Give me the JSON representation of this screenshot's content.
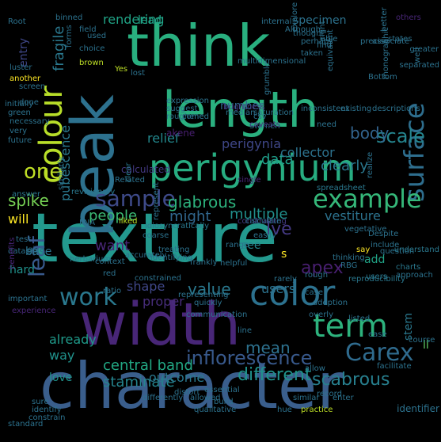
{
  "background": "#000000",
  "words": [
    {
      "text": "texture",
      "color": "#23998e"
    },
    {
      "text": "character",
      "color": "#3a5e8c"
    },
    {
      "text": "width",
      "color": "#482677"
    },
    {
      "text": "beak",
      "color": "#2d718e"
    },
    {
      "text": "think",
      "color": "#29af7f"
    },
    {
      "text": "length",
      "color": "#2ab07f"
    },
    {
      "text": "perigynium",
      "color": "#27ad81"
    },
    {
      "text": "colour",
      "color": "#b8de29"
    },
    {
      "text": "color",
      "color": "#2c718e"
    },
    {
      "text": "surface",
      "color": "#2e6e8e"
    },
    {
      "text": "term",
      "color": "#2db27d"
    },
    {
      "text": "sample",
      "color": "#3e4a89"
    },
    {
      "text": "example",
      "color": "#35b779"
    },
    {
      "text": "Carex",
      "color": "#2f6b8e"
    },
    {
      "text": "one",
      "color": "#c0df25"
    },
    {
      "text": "inflorescence",
      "color": "#38598c"
    },
    {
      "text": "leaf",
      "color": "#38598c"
    },
    {
      "text": "work",
      "color": "#2a788e"
    },
    {
      "text": "scale",
      "color": "#25858e"
    },
    {
      "text": "spike",
      "color": "#75d054"
    },
    {
      "text": "glabrous",
      "color": "#2db27d"
    },
    {
      "text": "people",
      "color": "#3bbb75"
    },
    {
      "text": "might",
      "color": "#31678e"
    },
    {
      "text": "apex",
      "color": "#481f70"
    },
    {
      "text": "body",
      "color": "#32648e"
    },
    {
      "text": "data",
      "color": "#1f9e89"
    },
    {
      "text": "perigynia",
      "color": "#3f4788"
    },
    {
      "text": "relief",
      "color": "#23898e"
    },
    {
      "text": "central band",
      "color": "#22a884"
    },
    {
      "text": "mean",
      "color": "#2d718e"
    },
    {
      "text": "different",
      "color": "#20928c"
    },
    {
      "text": "scabrous",
      "color": "#277f8e"
    },
    {
      "text": "staminate",
      "color": "#25848e"
    },
    {
      "text": "already",
      "color": "#1f9a8a"
    },
    {
      "text": "way",
      "color": "#20928c"
    },
    {
      "text": "will",
      "color": "#fde725"
    },
    {
      "text": "value",
      "color": "#2a788e"
    },
    {
      "text": "shape",
      "color": "#3f4788"
    },
    {
      "text": "proper",
      "color": "#472d7b"
    },
    {
      "text": "users",
      "color": "#2c728e"
    },
    {
      "text": "multiple",
      "color": "#21908d"
    },
    {
      "text": "vestiture",
      "color": "#2c728e"
    },
    {
      "text": "clearly",
      "color": "#2a788e"
    },
    {
      "text": "collector",
      "color": "#2c728e"
    },
    {
      "text": "outcome",
      "color": "#2a788e"
    },
    {
      "text": "love",
      "color": "#20928c"
    },
    {
      "text": "hard",
      "color": "#20928c"
    },
    {
      "text": "base",
      "color": "#2c728e"
    },
    {
      "text": "want",
      "color": "#482677"
    },
    {
      "text": "pubescence",
      "color": "#2a788e"
    },
    {
      "text": "fragile",
      "color": "#2a788e"
    },
    {
      "text": "rendering",
      "color": "#20a386"
    },
    {
      "text": "lead",
      "color": "#20a386"
    },
    {
      "text": "number",
      "color": "#31678e"
    },
    {
      "text": "specimen",
      "color": "#2c728e"
    },
    {
      "text": "entry",
      "color": "#3f4788"
    },
    {
      "text": "lve",
      "color": "#443983"
    },
    {
      "text": "see",
      "color": "#25848e"
    },
    {
      "text": "s",
      "color": "#fde725"
    },
    {
      "text": "add",
      "color": "#20a386"
    },
    {
      "text": "stem",
      "color": "#2a788e"
    },
    {
      "text": "ll",
      "color": "#5ec962"
    },
    {
      "text": "akene",
      "color": "#481f70"
    },
    {
      "text": "Stamen",
      "color": "#2a788e"
    },
    {
      "text": "caveats",
      "color": "#46337e"
    },
    {
      "text": "brightness",
      "color": "#46337e"
    },
    {
      "text": "Despite",
      "color": "#2c728e"
    },
    {
      "text": "calculated",
      "color": "#443983"
    },
    {
      "text": "vegetative",
      "color": "#2c728e"
    },
    {
      "text": "idiosyncratically",
      "color": "#2a788e"
    },
    {
      "text": "constraining",
      "color": "#443983"
    },
    {
      "text": "calculate",
      "color": "#2c728e"
    },
    {
      "text": "thinking",
      "color": "#2c728e"
    },
    {
      "text": "question",
      "color": "#2c728e"
    },
    {
      "text": "understand",
      "color": "#2a788e"
    },
    {
      "text": "charts",
      "color": "#2a788e"
    },
    {
      "text": "users",
      "color": "#2a788e"
    },
    {
      "text": "reproducibility",
      "color": "#2a788e"
    },
    {
      "text": "constrained",
      "color": "#2c728e"
    },
    {
      "text": "helpful",
      "color": "#2c728e"
    },
    {
      "text": "herbarium",
      "color": "#2a788e"
    },
    {
      "text": "context",
      "color": "#2c728e"
    },
    {
      "text": "identifying",
      "color": "#2c728e"
    },
    {
      "text": "treating",
      "color": "#2c728e"
    },
    {
      "text": "frankly",
      "color": "#2c728e"
    },
    {
      "text": "range",
      "color": "#2c728e"
    },
    {
      "text": "easily",
      "color": "#2c728e"
    },
    {
      "text": "RBG",
      "color": "#2c728e"
    },
    {
      "text": "say",
      "color": "#fde725"
    },
    {
      "text": "include",
      "color": "#2c728e"
    },
    {
      "text": "FNA",
      "color": "#2c728e"
    },
    {
      "text": "liked",
      "color": "#bddf26"
    },
    {
      "text": "test",
      "color": "#2c728e"
    },
    {
      "text": "dataset",
      "color": "#2c728e"
    },
    {
      "text": "give",
      "color": "#2c728e"
    },
    {
      "text": "benefits",
      "color": "#482677"
    },
    {
      "text": "revisionary",
      "color": "#2a788e"
    },
    {
      "text": "similarly",
      "color": "#2c728e"
    },
    {
      "text": "answer",
      "color": "#2a788e"
    },
    {
      "text": "Related",
      "color": "#2c728e"
    },
    {
      "text": "clear",
      "color": "#2a788e"
    },
    {
      "text": "single",
      "color": "#482677"
    },
    {
      "text": "realize",
      "color": "#2c728e"
    },
    {
      "text": "spreadsheet",
      "color": "#2a788e"
    },
    {
      "text": "red",
      "color": "#2c728e"
    },
    {
      "text": "ratio",
      "color": "#2c728e"
    },
    {
      "text": "representing",
      "color": "#2c728e"
    },
    {
      "text": "quickly",
      "color": "#2c728e"
    },
    {
      "text": "rarely",
      "color": "#2c728e"
    },
    {
      "text": "case",
      "color": "#2c728e"
    },
    {
      "text": "adoption",
      "color": "#2c728e"
    },
    {
      "text": "overly",
      "color": "#2c728e"
    },
    {
      "text": "listed",
      "color": "#2c728e"
    },
    {
      "text": "ease",
      "color": "#2c728e"
    },
    {
      "text": "course",
      "color": "#2c728e"
    },
    {
      "text": "allow",
      "color": "#2c728e"
    },
    {
      "text": "facilitate",
      "color": "#2c728e"
    },
    {
      "text": "identifier",
      "color": "#2c728e"
    },
    {
      "text": "hue",
      "color": "#2c728e"
    },
    {
      "text": "practice",
      "color": "#bddf26"
    },
    {
      "text": "similar",
      "color": "#2c728e"
    },
    {
      "text": "record",
      "color": "#2c728e"
    },
    {
      "text": "enter",
      "color": "#2c728e"
    },
    {
      "text": "build",
      "color": "#2c728e"
    },
    {
      "text": "qualitative",
      "color": "#2c728e"
    },
    {
      "text": "differently",
      "color": "#2c728e"
    },
    {
      "text": "distort",
      "color": "#2c728e"
    },
    {
      "text": "allowed",
      "color": "#2c728e"
    },
    {
      "text": "essential",
      "color": "#2c728e"
    },
    {
      "text": "sure",
      "color": "#2c728e"
    },
    {
      "text": "identify",
      "color": "#2c728e"
    },
    {
      "text": "constrain",
      "color": "#2c728e"
    },
    {
      "text": "standard",
      "color": "#2c728e"
    },
    {
      "text": "communication",
      "color": "#2c728e"
    },
    {
      "text": "important",
      "color": "#2c728e"
    },
    {
      "text": "line",
      "color": "#2c728e"
    },
    {
      "text": "approach",
      "color": "#2c728e"
    },
    {
      "text": "rough",
      "color": "#2c728e"
    },
    {
      "text": "experience",
      "color": "#482677"
    },
    {
      "text": "others",
      "color": "#482677"
    },
    {
      "text": "Although",
      "color": "#2c728e"
    },
    {
      "text": "internal",
      "color": "#2c728e"
    },
    {
      "text": "field",
      "color": "#2c728e"
    },
    {
      "text": "used",
      "color": "#2c728e"
    },
    {
      "text": "forms",
      "color": "#2c728e"
    },
    {
      "text": "binned",
      "color": "#2c728e"
    },
    {
      "text": "choice",
      "color": "#2c728e"
    },
    {
      "text": "brown",
      "color": "#bddf26"
    },
    {
      "text": "Yes",
      "color": "#bddf26"
    },
    {
      "text": "lost",
      "color": "#2c728e"
    },
    {
      "text": "thought",
      "color": "#2c728e"
    },
    {
      "text": "perhaps",
      "color": "#2c728e"
    },
    {
      "text": "taken",
      "color": "#2c728e"
    },
    {
      "text": "find",
      "color": "#2c728e"
    },
    {
      "text": "explore",
      "color": "#2c728e"
    },
    {
      "text": "able",
      "color": "#2c728e"
    },
    {
      "text": "right",
      "color": "#2c728e"
    },
    {
      "text": "precise",
      "color": "#2c728e"
    },
    {
      "text": "states",
      "color": "#2c728e"
    },
    {
      "text": "better",
      "color": "#2c728e"
    },
    {
      "text": "associate",
      "color": "#2c728e"
    },
    {
      "text": "monographic",
      "color": "#2c728e"
    },
    {
      "text": "separated",
      "color": "#2c728e"
    },
    {
      "text": "well",
      "color": "#2c728e"
    },
    {
      "text": "Root",
      "color": "#2c728e"
    },
    {
      "text": "greater",
      "color": "#2c728e"
    },
    {
      "text": "luster",
      "color": "#2c728e"
    },
    {
      "text": "another",
      "color": "#fde725"
    },
    {
      "text": "screen",
      "color": "#2c728e"
    },
    {
      "text": "initially",
      "color": "#2c728e"
    },
    {
      "text": "done",
      "color": "#2c728e"
    },
    {
      "text": "green",
      "color": "#2c728e"
    },
    {
      "text": "necessary",
      "color": "#2c728e"
    },
    {
      "text": "very",
      "color": "#2c728e"
    },
    {
      "text": "future",
      "color": "#2c728e"
    },
    {
      "text": "expression",
      "color": "#2c728e"
    },
    {
      "text": "suggest",
      "color": "#2c728e"
    },
    {
      "text": "roughened",
      "color": "#2c728e"
    },
    {
      "text": "come",
      "color": "#2c728e"
    },
    {
      "text": "median",
      "color": "#2c728e"
    },
    {
      "text": "saturation",
      "color": "#2c728e"
    },
    {
      "text": "csv",
      "color": "#2c728e"
    },
    {
      "text": "existing",
      "color": "#2c728e"
    },
    {
      "text": "need",
      "color": "#2c728e"
    },
    {
      "text": "descriptions",
      "color": "#2c728e"
    },
    {
      "text": "inconsistent",
      "color": "#2c728e"
    },
    {
      "text": "multidimensional",
      "color": "#2c728e"
    },
    {
      "text": "equivalent",
      "color": "#2c728e"
    },
    {
      "text": "grumble",
      "color": "#2c728e"
    },
    {
      "text": "Bottom",
      "color": "#2c728e"
    },
    {
      "text": "represent",
      "color": "#2c728e"
    },
    {
      "text": "accurately",
      "color": "#2c728e"
    },
    {
      "text": "coarse",
      "color": "#2c728e"
    }
  ]
}
